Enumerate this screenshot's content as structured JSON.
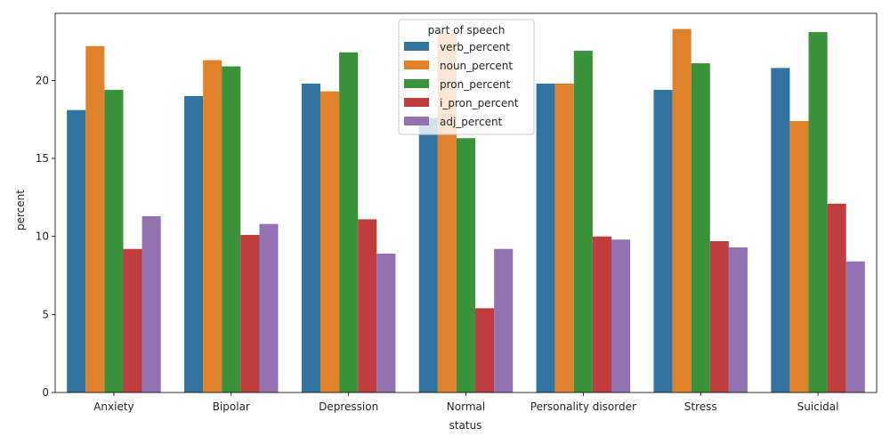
{
  "chart_data": {
    "type": "bar",
    "xlabel": "status",
    "ylabel": "percent",
    "ylim": [
      0,
      24.3
    ],
    "yticks": [
      0,
      5,
      10,
      15,
      20
    ],
    "grid": false,
    "legend": {
      "title": "part of speech",
      "placement": "top-center"
    },
    "categories": [
      "Anxiety",
      "Bipolar",
      "Depression",
      "Normal",
      "Personality disorder",
      "Stress",
      "Suicidal"
    ],
    "series": [
      {
        "name": "verb_percent",
        "color": "#3274a1",
        "values": [
          18.1,
          19.0,
          19.8,
          17.6,
          19.8,
          19.4,
          20.8
        ]
      },
      {
        "name": "noun_percent",
        "color": "#e1812c",
        "values": [
          22.2,
          21.3,
          19.3,
          23.0,
          19.8,
          23.3,
          17.4
        ]
      },
      {
        "name": "pron_percent",
        "color": "#3a923a",
        "values": [
          19.4,
          20.9,
          21.8,
          16.3,
          21.9,
          21.1,
          23.1
        ]
      },
      {
        "name": "i_pron_percent",
        "color": "#c03d3e",
        "values": [
          9.2,
          10.1,
          11.1,
          5.4,
          10.0,
          9.7,
          12.1
        ]
      },
      {
        "name": "adj_percent",
        "color": "#9372b2",
        "values": [
          11.3,
          10.8,
          8.9,
          9.2,
          9.8,
          9.3,
          8.4
        ]
      }
    ]
  }
}
